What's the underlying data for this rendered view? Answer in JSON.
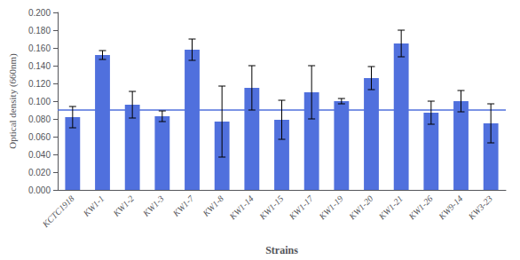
{
  "chart_data": {
    "type": "bar",
    "xlabel": "Strains",
    "ylabel": "Optical density (660nm)",
    "categories": [
      "KCTC1918",
      "KW1-1",
      "KW1-2",
      "KW1-3",
      "KW1-7",
      "KW1-8",
      "KW1-14",
      "KW1-15",
      "KW1-17",
      "KW1-19",
      "KW1-20",
      "KW1-21",
      "KW1-26",
      "KW9-14",
      "KW3-23"
    ],
    "values": [
      0.082,
      0.152,
      0.096,
      0.083,
      0.158,
      0.077,
      0.115,
      0.079,
      0.11,
      0.1,
      0.126,
      0.165,
      0.087,
      0.1,
      0.075
    ],
    "errors": [
      0.012,
      0.005,
      0.015,
      0.006,
      0.012,
      0.04,
      0.025,
      0.022,
      0.03,
      0.003,
      0.013,
      0.015,
      0.013,
      0.012,
      0.022
    ],
    "ref_line": 0.086,
    "ylim": [
      0.0,
      0.2
    ],
    "yticks": [
      {
        "value": 0.0,
        "label": "0.000"
      },
      {
        "value": 0.02,
        "label": "0.020"
      },
      {
        "value": 0.04,
        "label": "0.040"
      },
      {
        "value": 0.06,
        "label": "0.060"
      },
      {
        "value": 0.08,
        "label": "0.080"
      },
      {
        "value": 0.1,
        "label": "0.100"
      },
      {
        "value": 0.12,
        "label": "0.120"
      },
      {
        "value": 0.14,
        "label": "0.140"
      },
      {
        "value": 0.16,
        "label": "0.160"
      },
      {
        "value": 0.18,
        "label": "0.180"
      },
      {
        "value": 0.2,
        "label": "0.200"
      }
    ],
    "grid": false
  }
}
